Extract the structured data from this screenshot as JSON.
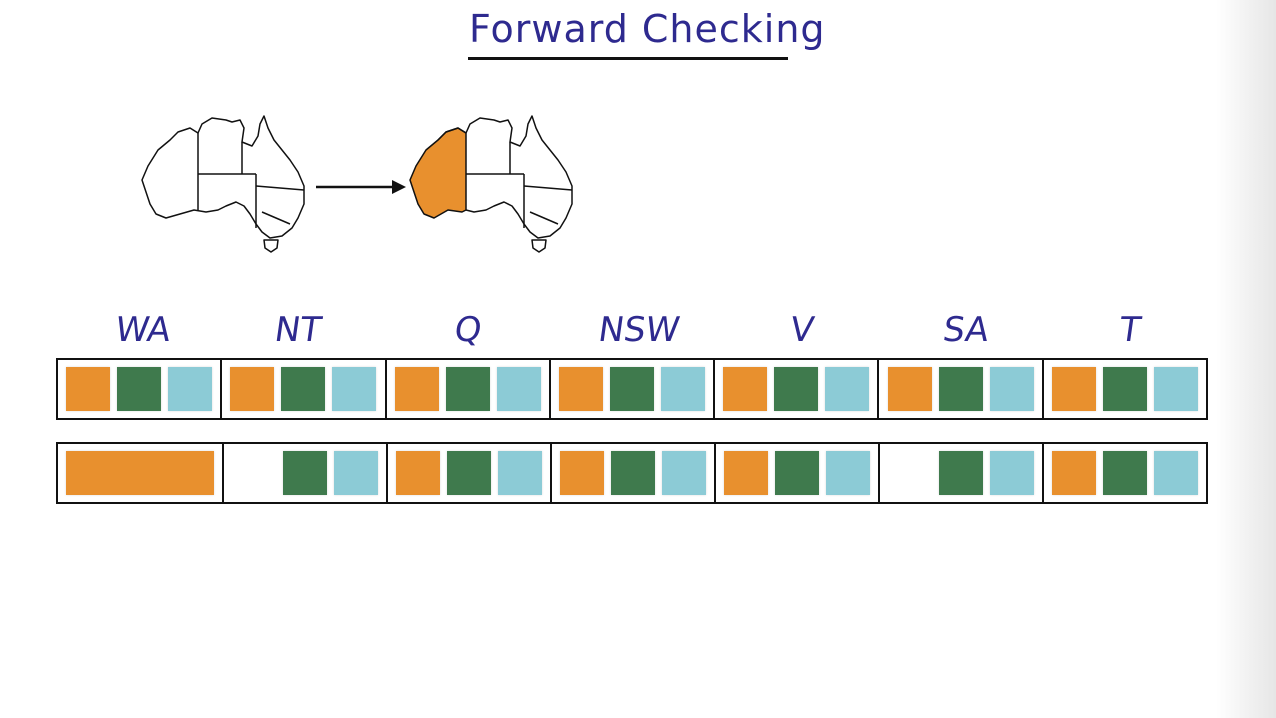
{
  "title": "Forward Checking",
  "colors": {
    "title_ink": "#2e2a8f",
    "orange": "#e8902e",
    "green": "#3f7a4d",
    "blue": "#8ccbd6"
  },
  "variables": [
    "WA",
    "NT",
    "Q",
    "NSW",
    "V",
    "SA",
    "T"
  ],
  "domains_before": [
    [
      "orange",
      "green",
      "blue"
    ],
    [
      "orange",
      "green",
      "blue"
    ],
    [
      "orange",
      "green",
      "blue"
    ],
    [
      "orange",
      "green",
      "blue"
    ],
    [
      "orange",
      "green",
      "blue"
    ],
    [
      "orange",
      "green",
      "blue"
    ],
    [
      "orange",
      "green",
      "blue"
    ]
  ],
  "domains_after": [
    [
      "orange"
    ],
    [
      "green",
      "blue"
    ],
    [
      "orange",
      "green",
      "blue"
    ],
    [
      "orange",
      "green",
      "blue"
    ],
    [
      "orange",
      "green",
      "blue"
    ],
    [
      "green",
      "blue"
    ],
    [
      "orange",
      "green",
      "blue"
    ]
  ],
  "maps": {
    "before_icon": "australia-map-icon",
    "after_icon": "australia-map-wa-orange-icon",
    "arrow_icon": "right-arrow-icon"
  }
}
